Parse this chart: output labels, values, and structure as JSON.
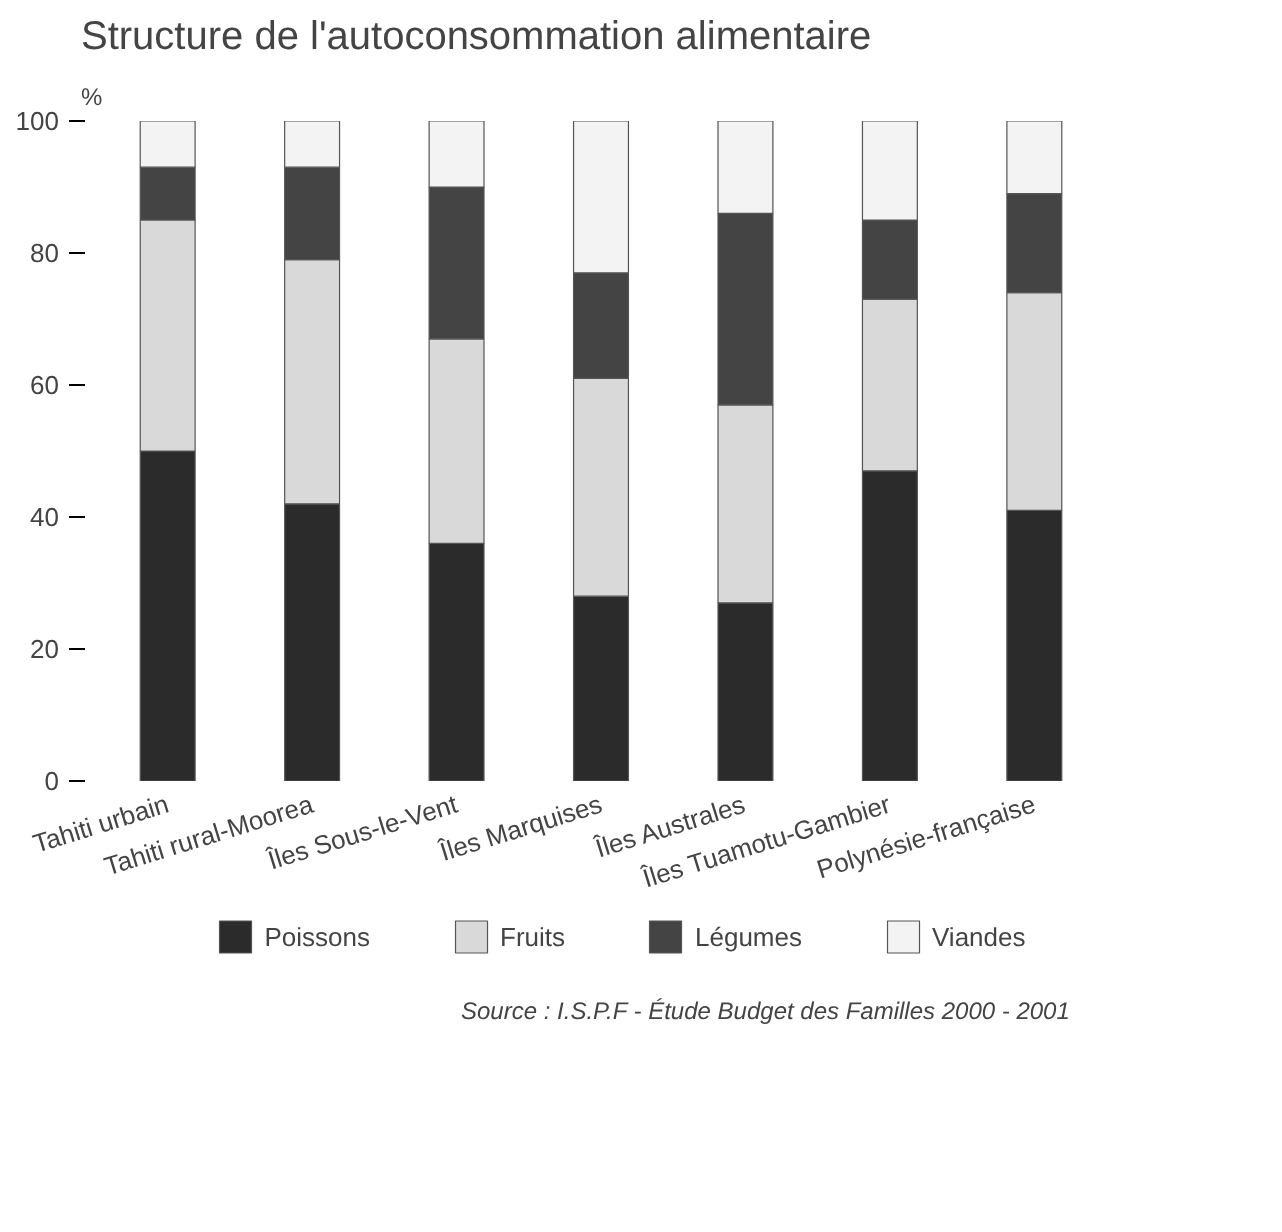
{
  "chart_data": {
    "type": "bar",
    "title": "Structure de l'autoconsommation alimentaire",
    "ylabel": "%",
    "categories": [
      "Tahiti urbain",
      "Tahiti rural-Moorea",
      "Îles Sous-le-Vent",
      "Îles Marquises",
      "Îles Australes",
      "Îles Tuamotu-Gambier",
      "Polynésie-française"
    ],
    "stacked": true,
    "series": [
      {
        "name": "Poissons",
        "color": "#2b2b2b",
        "values": [
          50,
          42,
          36,
          28,
          27,
          47,
          41
        ]
      },
      {
        "name": "Fruits",
        "color": "#d9d9d9",
        "values": [
          35,
          37,
          31,
          33,
          30,
          26,
          33
        ]
      },
      {
        "name": "Légumes",
        "color": "#444444",
        "values": [
          8,
          14,
          23,
          16,
          29,
          12,
          15
        ]
      },
      {
        "name": "Viandes",
        "color": "#f3f3f3",
        "values": [
          7,
          7,
          10,
          23,
          14,
          15,
          11
        ]
      }
    ],
    "ylim": [
      0,
      100
    ],
    "yticks": [
      0,
      20,
      40,
      60,
      80,
      100
    ],
    "grid": false,
    "legend": "bottom",
    "annotations": [
      "Source : I.S.P.F - Étude Budget des Familles 2000 - 2001"
    ]
  }
}
